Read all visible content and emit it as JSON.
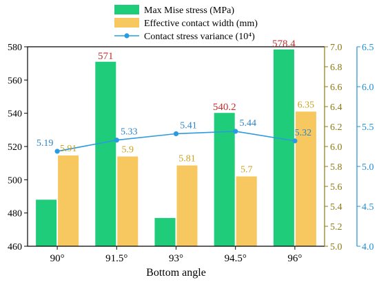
{
  "chart_data": {
    "type": "bar",
    "xlabel": "Bottom angle",
    "categories": [
      "90°",
      "91.5°",
      "93°",
      "94.5°",
      "96°"
    ],
    "legend": {
      "placement": "top-center",
      "entries": [
        "Max Mise stress (MPa)",
        "Effective contact width (mm)",
        "Contact stress variance (10⁴)"
      ]
    },
    "axes": {
      "left": {
        "ylim": [
          460,
          580
        ],
        "ticks": [
          "460",
          "480",
          "500",
          "520",
          "540",
          "560",
          "580"
        ],
        "color": "#000000"
      },
      "right1": {
        "ylim": [
          5.0,
          7.0
        ],
        "ticks": [
          "5.0",
          "5.2",
          "5.4",
          "5.6",
          "5.8",
          "6.0",
          "6.2",
          "6.4",
          "6.6",
          "6.8",
          "7.0"
        ],
        "color": "#8B7A12"
      },
      "right2": {
        "ylim": [
          4.0,
          6.5
        ],
        "ticks": [
          "4.0",
          "4.5",
          "5.0",
          "5.5",
          "6.0",
          "6.5"
        ],
        "color": "#1E90D6"
      }
    },
    "series": [
      {
        "name": "Max Mise stress (MPa)",
        "kind": "bar",
        "axis": "left",
        "color": "#1ECC7A",
        "values": [
          488,
          571,
          477,
          540.2,
          578.4
        ],
        "labels": [
          "",
          "571",
          "",
          "540.2",
          "578.4"
        ],
        "label_color": "#C0302F"
      },
      {
        "name": "Effective contact width (mm)",
        "kind": "bar",
        "axis": "right1",
        "color": "#F6C85F",
        "values": [
          5.91,
          5.9,
          5.81,
          5.7,
          6.35
        ],
        "labels": [
          "5.91",
          "5.9",
          "5.81",
          "5.7",
          "6.35"
        ],
        "label_color": "#C9A21D"
      },
      {
        "name": "Contact stress variance (10⁴)",
        "kind": "line",
        "axis": "right2",
        "color": "#2A9BE0",
        "values": [
          5.19,
          5.33,
          5.41,
          5.44,
          5.32
        ],
        "labels": [
          "5.19",
          "5.33",
          "5.41",
          "5.44",
          "5.32"
        ],
        "label_color": "#2A82C8"
      }
    ],
    "grid": false
  }
}
